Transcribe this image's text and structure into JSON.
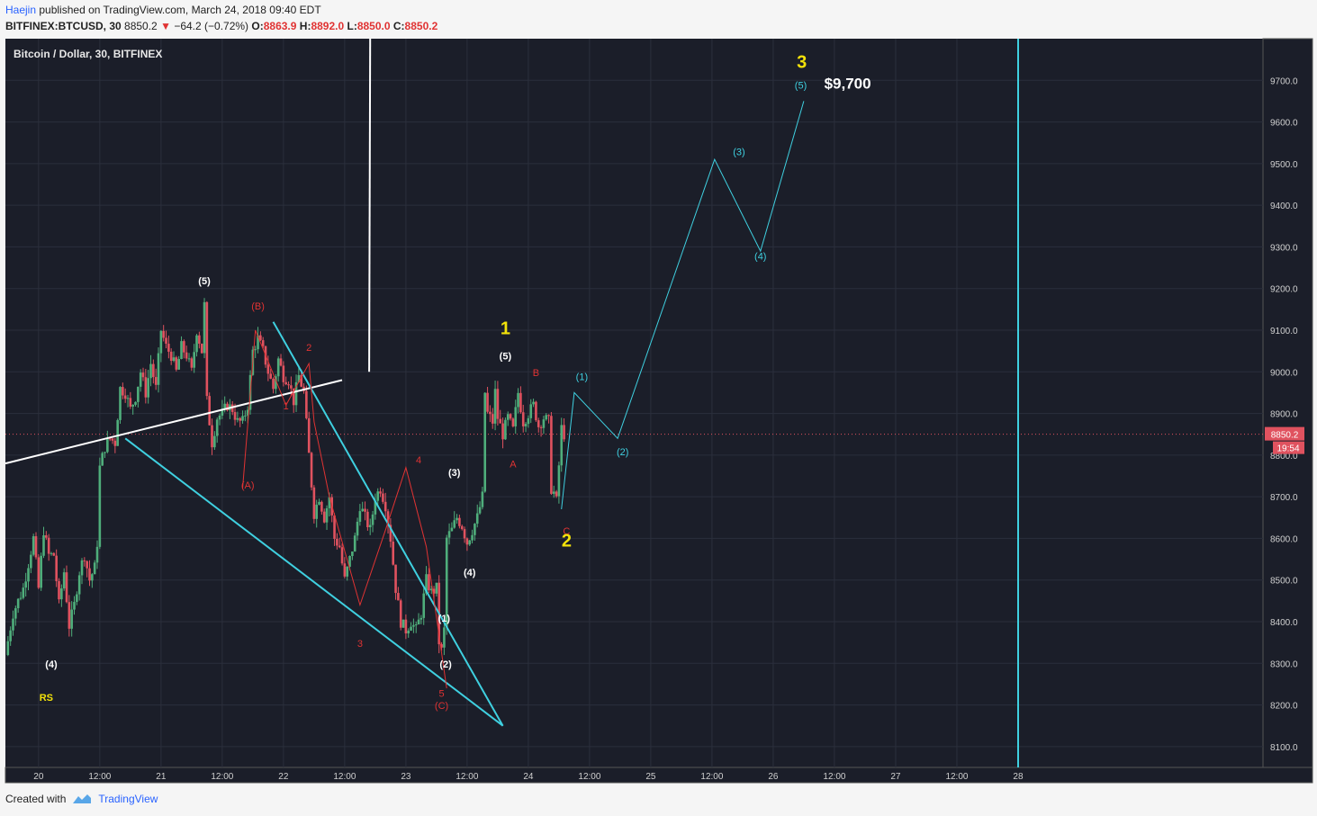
{
  "header": {
    "author": "Haejin",
    "published": " published on TradingView.com, March 24, 2018 09:40 EDT",
    "symbol": "BITFINEX:BTCUSD, 30",
    "last": "8850.2",
    "change": "−64.2 (−0.72%)",
    "o_label": "O:",
    "o_value": "8863.9",
    "h_label": "H:",
    "h_value": "8892.0",
    "l_label": "L:",
    "l_value": "8850.0",
    "c_label": "C:",
    "c_value": "8850.2"
  },
  "footer": {
    "created": "Created with",
    "brand": "TradingView"
  },
  "colors": {
    "bg": "#1b1e29",
    "up": "#4fae7b",
    "down": "#e0525f",
    "cyan": "#3fd0e0",
    "white": "#ffffff",
    "red": "#e03333",
    "yellow": "#f3e20a"
  },
  "chart_data": {
    "type": "candlestick",
    "title": "Bitcoin / Dollar, 30, BITFINEX",
    "price_tag": "8850.2",
    "time_tag": "19:54",
    "ylim": [
      8050,
      9800
    ],
    "yticks": [
      8100,
      8200,
      8300,
      8400,
      8500,
      8600,
      8700,
      8800,
      8900,
      9000,
      9100,
      9200,
      9300,
      9400,
      9500,
      9600,
      9700
    ],
    "x_axis_hours": [
      -6.5,
      240
    ],
    "xticks": [
      {
        "label": "20",
        "t": 0
      },
      {
        "label": "12:00",
        "t": 12
      },
      {
        "label": "21",
        "t": 24
      },
      {
        "label": "12:00",
        "t": 36
      },
      {
        "label": "22",
        "t": 48
      },
      {
        "label": "12:00",
        "t": 60
      },
      {
        "label": "23",
        "t": 72
      },
      {
        "label": "12:00",
        "t": 84
      },
      {
        "label": "24",
        "t": 96
      },
      {
        "label": "12:00",
        "t": 108
      },
      {
        "label": "25",
        "t": 120
      },
      {
        "label": "12:00",
        "t": 132
      },
      {
        "label": "26",
        "t": 144
      },
      {
        "label": "12:00",
        "t": 156
      },
      {
        "label": "27",
        "t": 168
      },
      {
        "label": "12:00",
        "t": 180
      },
      {
        "label": "28",
        "t": 192
      }
    ],
    "price_path": [
      [
        -6.5,
        8320
      ],
      [
        -5,
        8420
      ],
      [
        -3,
        8480
      ],
      [
        -1,
        8600
      ],
      [
        0,
        8480
      ],
      [
        1,
        8620
      ],
      [
        2,
        8560
      ],
      [
        3,
        8560
      ],
      [
        4,
        8440
      ],
      [
        5,
        8520
      ],
      [
        6,
        8390
      ],
      [
        7,
        8440
      ],
      [
        8,
        8520
      ],
      [
        9,
        8560
      ],
      [
        10,
        8500
      ],
      [
        11,
        8530
      ],
      [
        11.5,
        8590
      ],
      [
        12,
        8770
      ],
      [
        13,
        8820
      ],
      [
        14,
        8840
      ],
      [
        15,
        8830
      ],
      [
        16,
        8960
      ],
      [
        17,
        8950
      ],
      [
        18,
        8910
      ],
      [
        19,
        8940
      ],
      [
        20,
        9000
      ],
      [
        21,
        8950
      ],
      [
        22,
        9020
      ],
      [
        23,
        8960
      ],
      [
        24,
        9100
      ],
      [
        25,
        9060
      ],
      [
        26,
        9040
      ],
      [
        27,
        9000
      ],
      [
        28,
        9060
      ],
      [
        29,
        9040
      ],
      [
        30,
        9000
      ],
      [
        31,
        9100
      ],
      [
        32,
        9050
      ],
      [
        32.5,
        9160
      ],
      [
        33,
        8930
      ],
      [
        34,
        8830
      ],
      [
        35,
        8890
      ],
      [
        36,
        8900
      ],
      [
        37,
        8920
      ],
      [
        38,
        8910
      ],
      [
        39,
        8880
      ],
      [
        40,
        8880
      ],
      [
        41,
        8920
      ],
      [
        42,
        9050
      ],
      [
        43,
        9080
      ],
      [
        44,
        9050
      ],
      [
        45,
        9000
      ],
      [
        46,
        8960
      ],
      [
        47,
        9030
      ],
      [
        48,
        8990
      ],
      [
        49,
        8980
      ],
      [
        50,
        8930
      ],
      [
        51,
        8990
      ],
      [
        52,
        8950
      ],
      [
        53,
        8800
      ],
      [
        54,
        8660
      ],
      [
        55,
        8700
      ],
      [
        56,
        8650
      ],
      [
        57,
        8700
      ],
      [
        58,
        8600
      ],
      [
        59,
        8580
      ],
      [
        60,
        8500
      ],
      [
        61,
        8550
      ],
      [
        62,
        8600
      ],
      [
        63,
        8680
      ],
      [
        64,
        8650
      ],
      [
        65,
        8620
      ],
      [
        66,
        8700
      ],
      [
        67,
        8720
      ],
      [
        68,
        8680
      ],
      [
        69,
        8600
      ],
      [
        70,
        8480
      ],
      [
        71,
        8400
      ],
      [
        72,
        8380
      ],
      [
        73,
        8400
      ],
      [
        74,
        8380
      ],
      [
        75,
        8420
      ],
      [
        76,
        8500
      ],
      [
        77,
        8470
      ],
      [
        78,
        8480
      ],
      [
        78.7,
        8300
      ],
      [
        79.5,
        8380
      ],
      [
        80,
        8600
      ],
      [
        81,
        8620
      ],
      [
        82,
        8650
      ],
      [
        83,
        8630
      ],
      [
        84,
        8590
      ],
      [
        85,
        8620
      ],
      [
        86,
        8650
      ],
      [
        87,
        8700
      ],
      [
        87.5,
        8950
      ],
      [
        88,
        8900
      ],
      [
        89,
        8880
      ],
      [
        89.7,
        8980
      ],
      [
        90,
        8890
      ],
      [
        91,
        8850
      ],
      [
        92,
        8890
      ],
      [
        93,
        8860
      ],
      [
        94,
        8950
      ],
      [
        95,
        8880
      ],
      [
        96,
        8900
      ],
      [
        97,
        8920
      ],
      [
        98,
        8870
      ],
      [
        99,
        8890
      ],
      [
        100,
        8880
      ],
      [
        100.5,
        8720
      ],
      [
        101,
        8710
      ],
      [
        101.7,
        8680
      ],
      [
        102.3,
        8870
      ],
      [
        103,
        8850
      ]
    ],
    "annotations": [
      {
        "text": "(4)",
        "t": 2.5,
        "p": 8290,
        "color": "white"
      },
      {
        "text": "RS",
        "t": 1.5,
        "p": 8210,
        "color": "yellow"
      },
      {
        "text": "(5)",
        "t": 32.5,
        "p": 9210,
        "color": "white"
      },
      {
        "text": "(B)",
        "t": 43,
        "p": 9150,
        "color": "red"
      },
      {
        "text": "(A)",
        "t": 41,
        "p": 8720,
        "color": "red"
      },
      {
        "text": "1",
        "t": 48.5,
        "p": 8910,
        "color": "red"
      },
      {
        "text": "2",
        "t": 53,
        "p": 9050,
        "color": "red"
      },
      {
        "text": "3",
        "t": 63,
        "p": 8340,
        "color": "red"
      },
      {
        "text": "4",
        "t": 74.5,
        "p": 8780,
        "color": "red"
      },
      {
        "text": "5",
        "t": 79,
        "p": 8220,
        "color": "red"
      },
      {
        "text": "(C)",
        "t": 79,
        "p": 8190,
        "color": "red"
      },
      {
        "text": "(1)",
        "t": 79.5,
        "p": 8400,
        "color": "white"
      },
      {
        "text": "(2)",
        "t": 79.8,
        "p": 8290,
        "color": "white"
      },
      {
        "text": "(3)",
        "t": 81.5,
        "p": 8750,
        "color": "white"
      },
      {
        "text": "(4)",
        "t": 84.5,
        "p": 8510,
        "color": "white"
      },
      {
        "text": "1",
        "t": 91.5,
        "p": 9090,
        "color": "yellow"
      },
      {
        "text": "(5)",
        "t": 91.5,
        "p": 9030,
        "color": "white"
      },
      {
        "text": "A",
        "t": 93,
        "p": 8770,
        "color": "red"
      },
      {
        "text": "B",
        "t": 97.5,
        "p": 8990,
        "color": "red"
      },
      {
        "text": "C",
        "t": 103.5,
        "p": 8610,
        "color": "red"
      },
      {
        "text": "2",
        "t": 103.5,
        "p": 8580,
        "color": "yellow"
      },
      {
        "text": "(1)",
        "t": 106.5,
        "p": 8980,
        "color": "cyan"
      },
      {
        "text": "(2)",
        "t": 114.5,
        "p": 8800,
        "color": "cyan"
      },
      {
        "text": "(3)",
        "t": 137.3,
        "p": 9520,
        "color": "cyan"
      },
      {
        "text": "(4)",
        "t": 141.5,
        "p": 9270,
        "color": "cyan"
      },
      {
        "text": "(5)",
        "t": 149.4,
        "p": 9680,
        "color": "cyan"
      },
      {
        "text": "3",
        "t": 149.6,
        "p": 9730,
        "color": "yellow"
      },
      {
        "text": "$9,700",
        "t": 154,
        "p": 9680,
        "color": "white"
      }
    ],
    "lines": [
      {
        "color": "white",
        "width": 2,
        "points": [
          [
            -6.5,
            8780
          ],
          [
            59.5,
            8980
          ]
        ]
      },
      {
        "color": "white",
        "width": 2,
        "points": [
          [
            64.8,
            9000
          ],
          [
            65,
            9800
          ]
        ]
      },
      {
        "color": "cyan",
        "width": 2,
        "points": [
          [
            17,
            8840
          ],
          [
            91,
            8150
          ]
        ]
      },
      {
        "color": "cyan",
        "width": 2,
        "points": [
          [
            46,
            9120
          ],
          [
            91,
            8150
          ]
        ]
      },
      {
        "color": "red",
        "width": 1,
        "points": [
          [
            40,
            8720
          ],
          [
            42.5,
            9100
          ],
          [
            48.5,
            8920
          ],
          [
            53,
            9020
          ],
          [
            54,
            8880
          ],
          [
            57,
            8700
          ],
          [
            63,
            8440
          ],
          [
            68,
            8620
          ],
          [
            72,
            8770
          ],
          [
            76,
            8580
          ],
          [
            80,
            8240
          ]
        ]
      },
      {
        "color": "cyan",
        "width": 1,
        "points": [
          [
            102.5,
            8670
          ],
          [
            105,
            8950
          ],
          [
            113.5,
            8840
          ],
          [
            132.5,
            9510
          ],
          [
            141.5,
            9290
          ],
          [
            150,
            9650
          ]
        ]
      },
      {
        "color": "cyan",
        "width": 2,
        "points": [
          [
            192,
            9800
          ],
          [
            192,
            8050
          ]
        ]
      }
    ]
  }
}
